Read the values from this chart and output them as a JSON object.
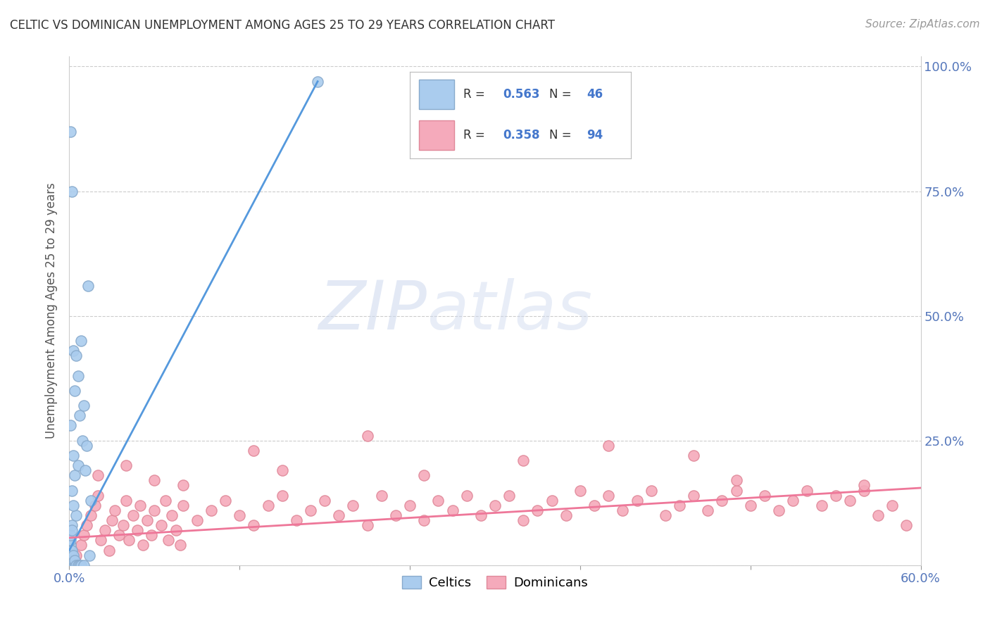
{
  "title": "CELTIC VS DOMINICAN UNEMPLOYMENT AMONG AGES 25 TO 29 YEARS CORRELATION CHART",
  "source": "Source: ZipAtlas.com",
  "ylabel": "Unemployment Among Ages 25 to 29 years",
  "watermark_zip": "ZIP",
  "watermark_atlas": "atlas",
  "legend_r1_label": "R = 0.563",
  "legend_n1_label": "N = 46",
  "legend_r2_label": "R = 0.358",
  "legend_n2_label": "N = 94",
  "celtic_color": "#aaccee",
  "celtic_edge": "#88aacc",
  "dominican_color": "#f5aabb",
  "dominican_edge": "#e08899",
  "trendline_celtic_color": "#5599dd",
  "trendline_dominican_color": "#ee7799",
  "xlim": [
    0.0,
    0.6
  ],
  "ylim": [
    0.0,
    1.02
  ],
  "xtick_labels": [
    "0.0%",
    "",
    "",
    "",
    "",
    "60.0%"
  ],
  "xtick_vals": [
    0.0,
    0.12,
    0.24,
    0.36,
    0.48,
    0.6
  ],
  "ytick_right_labels": [
    "",
    "25.0%",
    "50.0%",
    "75.0%",
    "100.0%"
  ],
  "ytick_vals": [
    0.0,
    0.25,
    0.5,
    0.75,
    1.0
  ],
  "tick_color": "#5577bb",
  "grid_color": "#cccccc",
  "celtic_trend_x0": 0.0,
  "celtic_trend_y0": 0.03,
  "celtic_trend_x1": 0.175,
  "celtic_trend_y1": 0.97,
  "dominican_trend_x0": 0.0,
  "dominican_trend_y0": 0.055,
  "dominican_trend_x1": 0.6,
  "dominican_trend_y1": 0.155,
  "celtic_x": [
    0.001,
    0.001,
    0.001,
    0.001,
    0.001,
    0.001,
    0.001,
    0.002,
    0.002,
    0.002,
    0.002,
    0.002,
    0.002,
    0.003,
    0.003,
    0.003,
    0.003,
    0.003,
    0.004,
    0.004,
    0.004,
    0.004,
    0.005,
    0.005,
    0.005,
    0.006,
    0.006,
    0.006,
    0.007,
    0.007,
    0.008,
    0.008,
    0.009,
    0.01,
    0.01,
    0.011,
    0.012,
    0.013,
    0.014,
    0.015,
    0.001,
    0.002,
    0.003,
    0.001,
    0.002,
    0.175
  ],
  "celtic_y": [
    0.0,
    0.01,
    0.02,
    0.03,
    0.04,
    0.05,
    0.87,
    0.0,
    0.01,
    0.02,
    0.03,
    0.15,
    0.75,
    0.0,
    0.01,
    0.02,
    0.22,
    0.43,
    0.0,
    0.01,
    0.18,
    0.35,
    0.0,
    0.1,
    0.42,
    0.0,
    0.2,
    0.38,
    0.0,
    0.3,
    0.0,
    0.45,
    0.25,
    0.0,
    0.32,
    0.19,
    0.24,
    0.56,
    0.02,
    0.13,
    0.06,
    0.08,
    0.12,
    0.28,
    0.07,
    0.97
  ],
  "dominican_x": [
    0.005,
    0.008,
    0.01,
    0.012,
    0.015,
    0.018,
    0.02,
    0.022,
    0.025,
    0.028,
    0.03,
    0.032,
    0.035,
    0.038,
    0.04,
    0.042,
    0.045,
    0.048,
    0.05,
    0.052,
    0.055,
    0.058,
    0.06,
    0.065,
    0.068,
    0.07,
    0.072,
    0.075,
    0.078,
    0.08,
    0.09,
    0.1,
    0.11,
    0.12,
    0.13,
    0.14,
    0.15,
    0.16,
    0.17,
    0.18,
    0.19,
    0.2,
    0.21,
    0.22,
    0.23,
    0.24,
    0.25,
    0.26,
    0.27,
    0.28,
    0.29,
    0.3,
    0.31,
    0.32,
    0.33,
    0.34,
    0.35,
    0.36,
    0.37,
    0.38,
    0.39,
    0.4,
    0.41,
    0.42,
    0.43,
    0.44,
    0.45,
    0.46,
    0.47,
    0.48,
    0.49,
    0.5,
    0.51,
    0.52,
    0.53,
    0.54,
    0.55,
    0.56,
    0.57,
    0.58,
    0.02,
    0.04,
    0.06,
    0.08,
    0.38,
    0.21,
    0.44,
    0.15,
    0.32,
    0.25,
    0.47,
    0.13,
    0.56,
    0.59
  ],
  "dominican_y": [
    0.02,
    0.04,
    0.06,
    0.08,
    0.1,
    0.12,
    0.14,
    0.05,
    0.07,
    0.03,
    0.09,
    0.11,
    0.06,
    0.08,
    0.13,
    0.05,
    0.1,
    0.07,
    0.12,
    0.04,
    0.09,
    0.06,
    0.11,
    0.08,
    0.13,
    0.05,
    0.1,
    0.07,
    0.04,
    0.12,
    0.09,
    0.11,
    0.13,
    0.1,
    0.08,
    0.12,
    0.14,
    0.09,
    0.11,
    0.13,
    0.1,
    0.12,
    0.08,
    0.14,
    0.1,
    0.12,
    0.09,
    0.13,
    0.11,
    0.14,
    0.1,
    0.12,
    0.14,
    0.09,
    0.11,
    0.13,
    0.1,
    0.15,
    0.12,
    0.14,
    0.11,
    0.13,
    0.15,
    0.1,
    0.12,
    0.14,
    0.11,
    0.13,
    0.15,
    0.12,
    0.14,
    0.11,
    0.13,
    0.15,
    0.12,
    0.14,
    0.13,
    0.15,
    0.1,
    0.12,
    0.18,
    0.2,
    0.17,
    0.16,
    0.24,
    0.26,
    0.22,
    0.19,
    0.21,
    0.18,
    0.17,
    0.23,
    0.16,
    0.08
  ],
  "marker_size": 120,
  "title_fontsize": 12,
  "tick_fontsize": 13,
  "ylabel_fontsize": 12,
  "source_fontsize": 11,
  "legend_fontsize": 13,
  "watermark_fontsize_zip": 70,
  "watermark_fontsize_atlas": 70
}
